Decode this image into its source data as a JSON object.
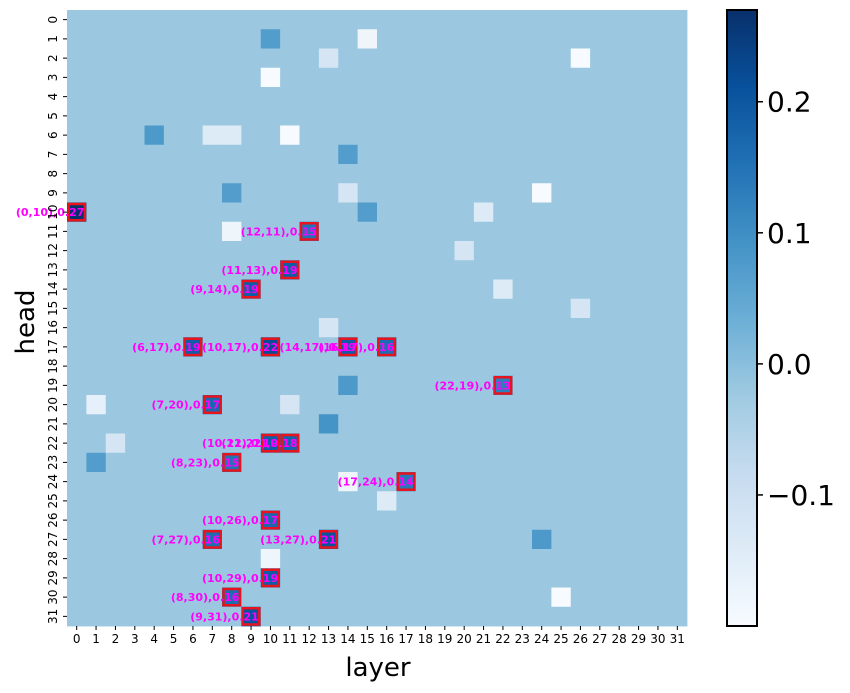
{
  "chart_data": {
    "type": "heatmap",
    "xlabel": "layer",
    "ylabel": "head",
    "x_tick_labels": [
      "0",
      "1",
      "2",
      "3",
      "4",
      "5",
      "6",
      "7",
      "8",
      "9",
      "10",
      "11",
      "12",
      "13",
      "14",
      "15",
      "16",
      "17",
      "18",
      "19",
      "20",
      "21",
      "22",
      "23",
      "24",
      "25",
      "26",
      "27",
      "28",
      "29",
      "30",
      "31"
    ],
    "y_tick_labels": [
      "0",
      "1",
      "2",
      "3",
      "4",
      "5",
      "6",
      "7",
      "8",
      "9",
      "10",
      "11",
      "12",
      "13",
      "14",
      "15",
      "16",
      "17",
      "18",
      "19",
      "20",
      "21",
      "22",
      "23",
      "24",
      "25",
      "26",
      "27",
      "28",
      "29",
      "30",
      "31"
    ],
    "colormap": "Blues",
    "vmin": -0.2,
    "vmax": 0.27,
    "colorbar_ticks": [
      {
        "value": 0.2,
        "label": "0.2"
      },
      {
        "value": 0.1,
        "label": "0.1"
      },
      {
        "value": 0.0,
        "label": "0.0"
      },
      {
        "value": -0.1,
        "label": "−0.1"
      }
    ],
    "baseline_value": -0.02,
    "cells": [
      {
        "layer": 26,
        "head": 2,
        "value": -0.2
      },
      {
        "layer": 10,
        "head": 3,
        "value": -0.2
      },
      {
        "layer": 11,
        "head": 6,
        "value": -0.2
      },
      {
        "layer": 24,
        "head": 9,
        "value": -0.2
      },
      {
        "layer": 25,
        "head": 30,
        "value": -0.2
      },
      {
        "layer": 15,
        "head": 1,
        "value": -0.18
      },
      {
        "layer": 8,
        "head": 11,
        "value": -0.18
      },
      {
        "layer": 14,
        "head": 24,
        "value": -0.18
      },
      {
        "layer": 10,
        "head": 28,
        "value": -0.18
      },
      {
        "layer": 1,
        "head": 20,
        "value": -0.16
      },
      {
        "layer": 7,
        "head": 6,
        "value": -0.14
      },
      {
        "layer": 8,
        "head": 6,
        "value": -0.14
      },
      {
        "layer": 21,
        "head": 10,
        "value": -0.14
      },
      {
        "layer": 22,
        "head": 14,
        "value": -0.14
      },
      {
        "layer": 16,
        "head": 25,
        "value": -0.14
      },
      {
        "layer": 11,
        "head": 20,
        "value": -0.12
      },
      {
        "layer": 2,
        "head": 22,
        "value": -0.12
      },
      {
        "layer": 13,
        "head": 2,
        "value": -0.12
      },
      {
        "layer": 14,
        "head": 9,
        "value": -0.12
      },
      {
        "layer": 20,
        "head": 12,
        "value": -0.12
      },
      {
        "layer": 26,
        "head": 15,
        "value": -0.12
      },
      {
        "layer": 13,
        "head": 16,
        "value": -0.12
      },
      {
        "layer": 0,
        "head": 10,
        "value": 0.27
      },
      {
        "layer": 12,
        "head": 11,
        "value": 0.15
      },
      {
        "layer": 11,
        "head": 13,
        "value": 0.19
      },
      {
        "layer": 9,
        "head": 14,
        "value": 0.19
      },
      {
        "layer": 6,
        "head": 17,
        "value": 0.19
      },
      {
        "layer": 10,
        "head": 17,
        "value": 0.22
      },
      {
        "layer": 14,
        "head": 17,
        "value": 0.19
      },
      {
        "layer": 16,
        "head": 17,
        "value": 0.16
      },
      {
        "layer": 22,
        "head": 19,
        "value": 0.13
      },
      {
        "layer": 7,
        "head": 20,
        "value": 0.17
      },
      {
        "layer": 10,
        "head": 22,
        "value": 0.19
      },
      {
        "layer": 11,
        "head": 22,
        "value": 0.18
      },
      {
        "layer": 8,
        "head": 23,
        "value": 0.15
      },
      {
        "layer": 17,
        "head": 24,
        "value": 0.14
      },
      {
        "layer": 10,
        "head": 26,
        "value": 0.17
      },
      {
        "layer": 7,
        "head": 27,
        "value": 0.16
      },
      {
        "layer": 13,
        "head": 27,
        "value": 0.21
      },
      {
        "layer": 10,
        "head": 29,
        "value": 0.19
      },
      {
        "layer": 8,
        "head": 30,
        "value": 0.16
      },
      {
        "layer": 9,
        "head": 31,
        "value": 0.21
      },
      {
        "layer": 14,
        "head": 7,
        "value": 0.07
      },
      {
        "layer": 4,
        "head": 6,
        "value": 0.08
      },
      {
        "layer": 15,
        "head": 10,
        "value": 0.07
      },
      {
        "layer": 8,
        "head": 9,
        "value": 0.07
      },
      {
        "layer": 13,
        "head": 21,
        "value": 0.09
      },
      {
        "layer": 10,
        "head": 1,
        "value": 0.07
      },
      {
        "layer": 1,
        "head": 23,
        "value": 0.07
      },
      {
        "layer": 14,
        "head": 19,
        "value": 0.08
      },
      {
        "layer": 24,
        "head": 27,
        "value": 0.08
      }
    ],
    "annotations": [
      {
        "label": "(0,10),0.27",
        "layer": 0,
        "head": 10
      },
      {
        "label": "(12,11),0.15",
        "layer": 12,
        "head": 11
      },
      {
        "label": "(11,13),0.19",
        "layer": 11,
        "head": 13
      },
      {
        "label": "(9,14),0.19",
        "layer": 9,
        "head": 14
      },
      {
        "label": "(6,17),0.19",
        "layer": 6,
        "head": 17
      },
      {
        "label": "(10,17),0.22",
        "layer": 10,
        "head": 17
      },
      {
        "label": "(14,17),0.19",
        "layer": 14,
        "head": 17
      },
      {
        "label": "(16,17),0.16",
        "layer": 16,
        "head": 17
      },
      {
        "label": "(22,19),0.13",
        "layer": 22,
        "head": 19
      },
      {
        "label": "(7,20),0.17",
        "layer": 7,
        "head": 20
      },
      {
        "label": "(10,22),0.19",
        "layer": 10,
        "head": 22
      },
      {
        "label": "(11,22),0.18",
        "layer": 11,
        "head": 22
      },
      {
        "label": "(8,23),0.15",
        "layer": 8,
        "head": 23
      },
      {
        "label": "(17,24),0.14",
        "layer": 17,
        "head": 24
      },
      {
        "label": "(10,26),0.17",
        "layer": 10,
        "head": 26
      },
      {
        "label": "(7,27),0.16",
        "layer": 7,
        "head": 27
      },
      {
        "label": "(13,27),0.21",
        "layer": 13,
        "head": 27
      },
      {
        "label": "(10,29),0.19",
        "layer": 10,
        "head": 29
      },
      {
        "label": "(8,30),0.16",
        "layer": 8,
        "head": 30
      },
      {
        "label": "(9,31),0.21",
        "layer": 9,
        "head": 31
      }
    ],
    "highlight_color": "#e8141d",
    "annotation_color": "#ff00ff"
  }
}
